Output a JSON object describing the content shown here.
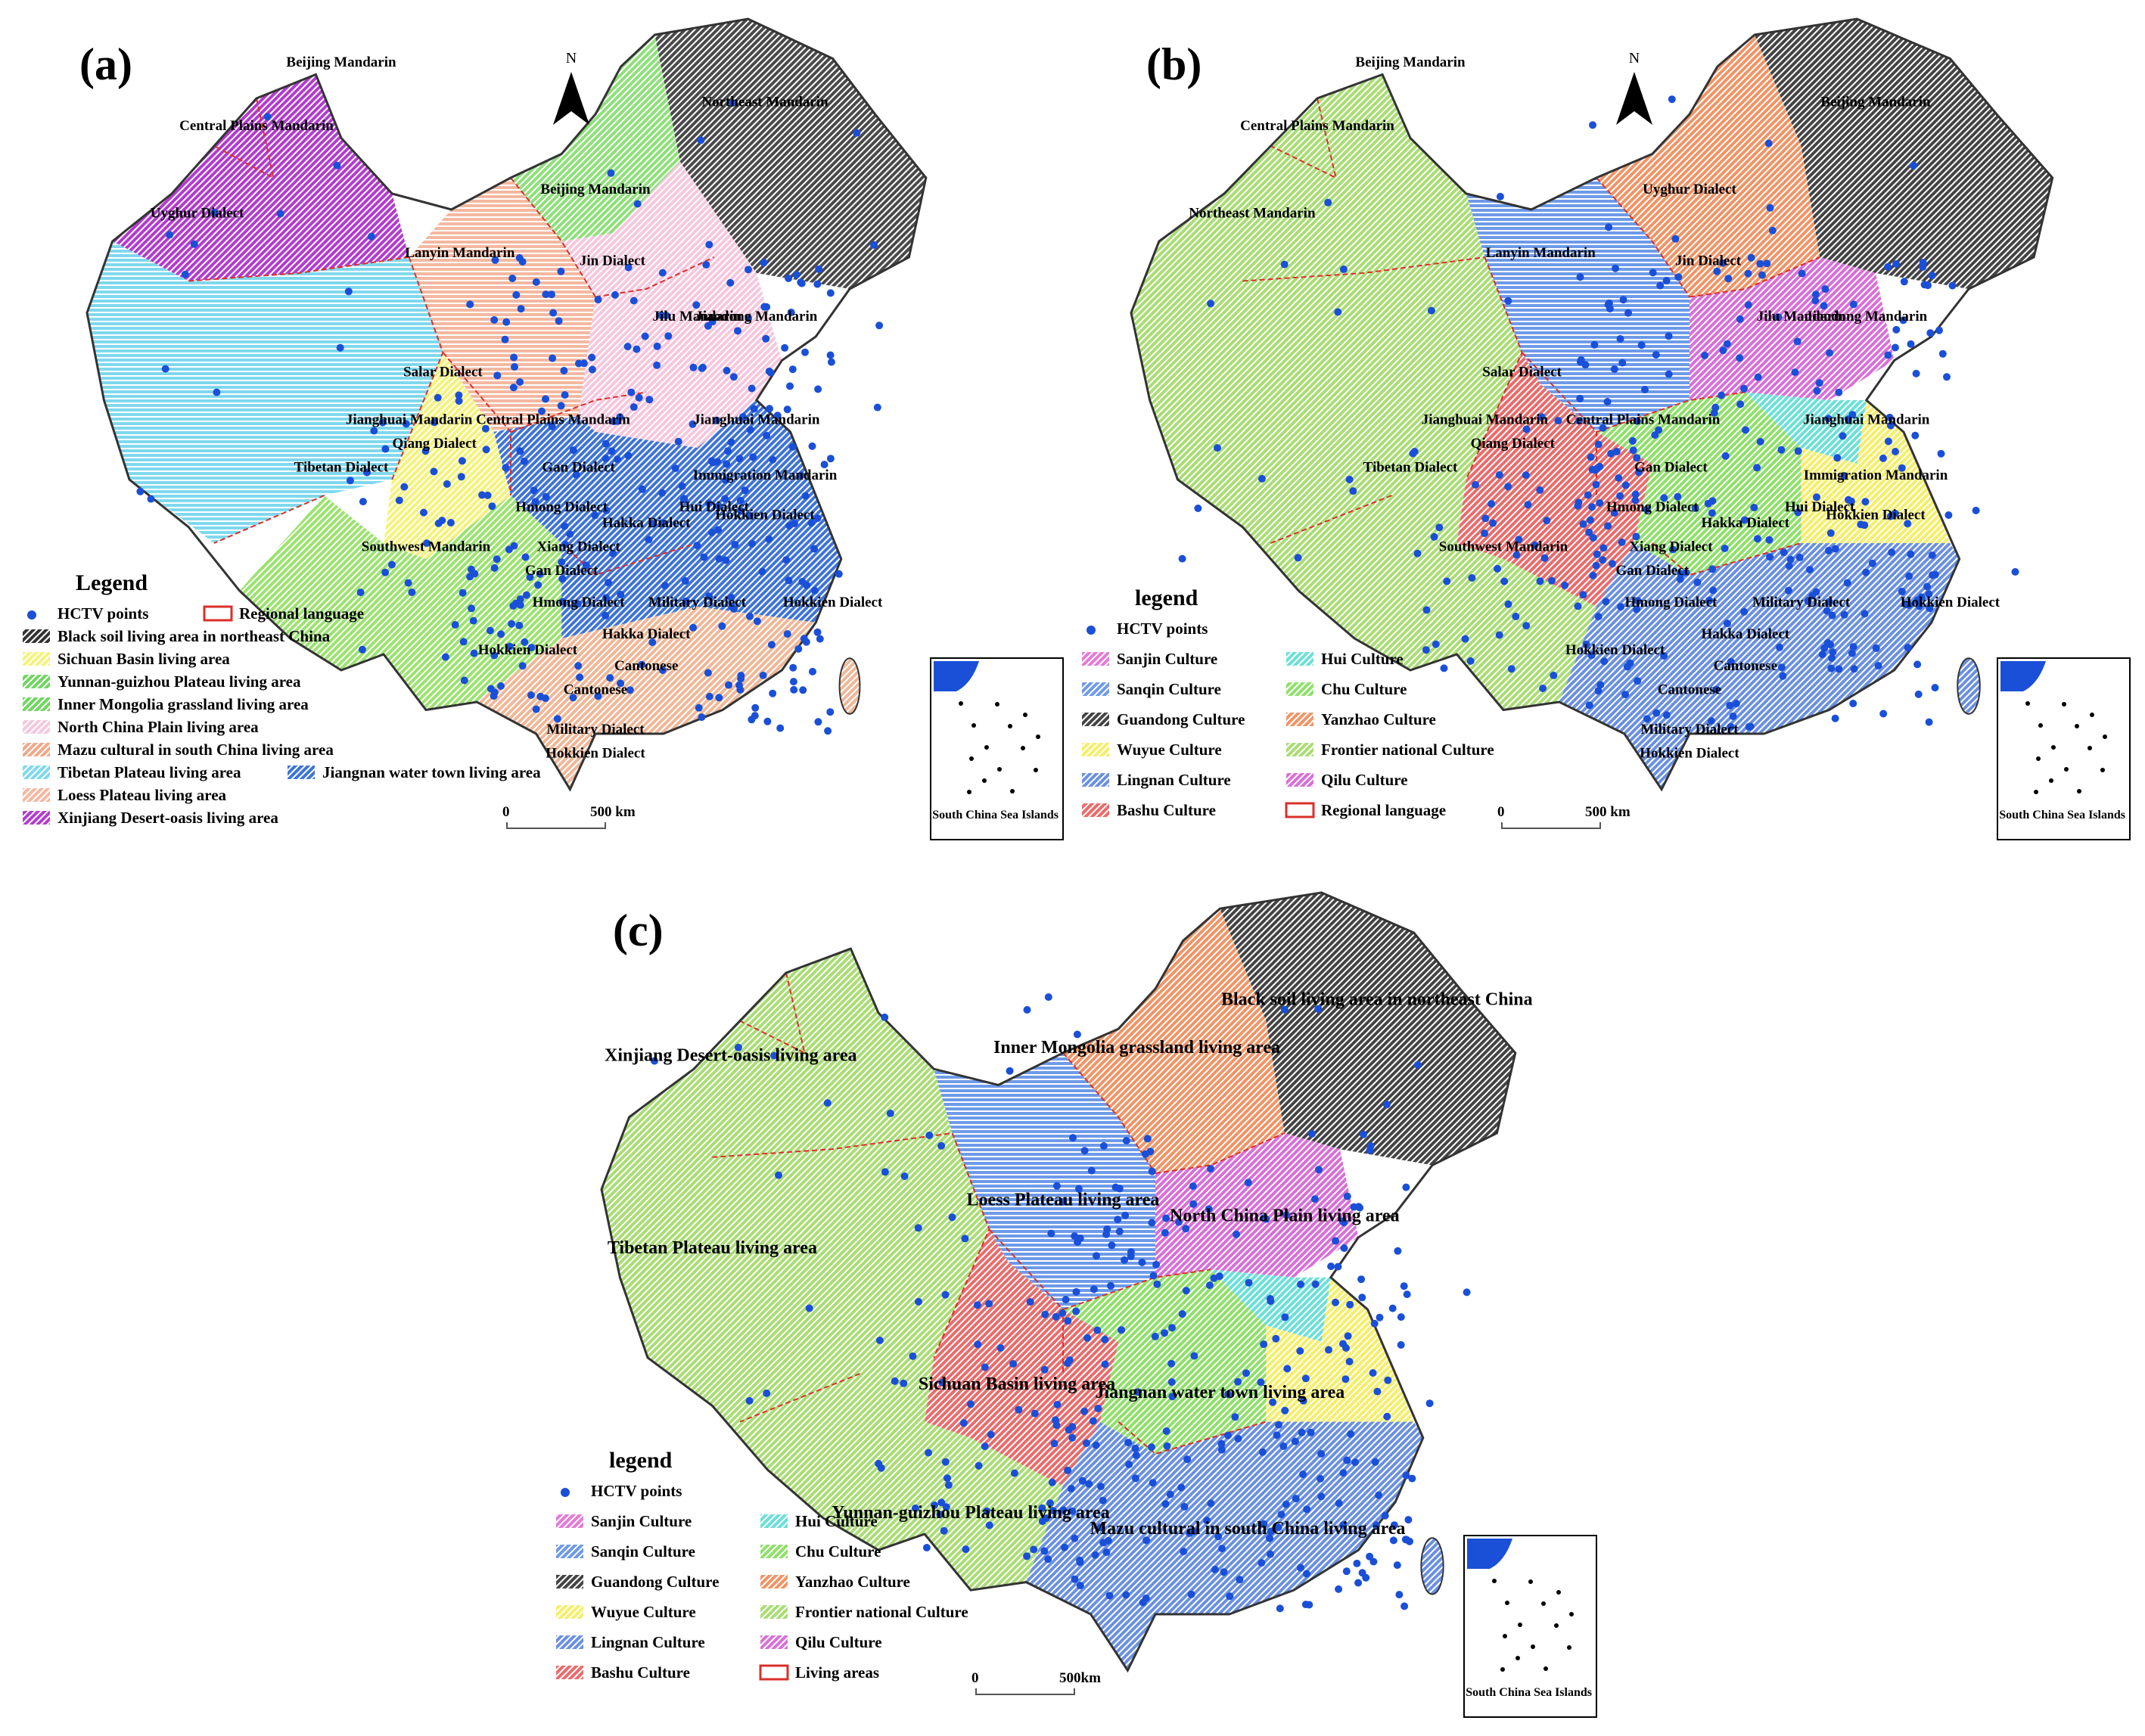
{
  "colors": {
    "hctv": "#1a4fd8",
    "regional_line": "#d9302b",
    "xinjiang": "#b23ccf",
    "tibet": "#7fd8ee",
    "loess": "#f4b8a0",
    "north_plain": "#f6c7de",
    "beijing_green": "#8ee07a",
    "northeast": "#4a4a4a",
    "sichuan": "#f5f27a",
    "yunnan": "#9be36f",
    "jiangnan": "#3f74d8",
    "mazu": "#f0b797",
    "frontier": "#a9dd74",
    "sanqin": "#6e9ae8",
    "yanzhao": "#f09466",
    "qilu": "#d86fd8",
    "bashu": "#ea6b6b",
    "chu": "#8fe06a",
    "hui": "#6ae0d8",
    "wuyue": "#f5ee6a",
    "lingnan": "#6a90e0",
    "sanjin": "#e47ad8",
    "guandong": "#444444"
  },
  "panel_a": {
    "label": "(a)",
    "north": "N",
    "legend_title": "Legend",
    "legend_items": [
      {
        "label": "HCTV points",
        "kind": "point"
      },
      {
        "label": "Regional language",
        "kind": "outline"
      },
      {
        "label": "Black soil living area in northeast China",
        "color": "#333333"
      },
      {
        "label": "Sichuan Basin living area",
        "color": "#f5f27a"
      },
      {
        "label": "Yunnan-guizhou Plateau living area",
        "color": "#6fd65f"
      },
      {
        "label": "Inner Mongolia grassland living area",
        "color": "#6fd65f"
      },
      {
        "label": "North China Plain living area",
        "color": "#f6c7de"
      },
      {
        "label": "Mazu cultural in south China living area",
        "color": "#f0a98a"
      },
      {
        "label": "Tibetan Plateau living area",
        "color": "#7fd8ee"
      },
      {
        "label": "Jiangnan water town living area",
        "color": "#3f74d8"
      },
      {
        "label": "Loess Plateau living area",
        "color": "#f4b8a0"
      },
      {
        "label": "Xinjiang Desert-oasis living area",
        "color": "#b23ccf"
      }
    ],
    "map_labels": [
      "Beijing Mandarin",
      "Central Plains Mandarin",
      "Uyghur Dialect",
      "Northeast Mandarin",
      "Beijing Mandarin",
      "Lanyin Mandarin",
      "Jin Dialect",
      "Jilu Mandarin",
      "Jiaodong Mandarin",
      "Salar Dialect",
      "Jianghuai Mandarin",
      "Central Plains Mandarin",
      "Jianghuai Mandarin",
      "Qiang Dialect",
      "Tibetan Dialect",
      "Gan Dialect",
      "Immigration Mandarin",
      "Hmong Dialect",
      "Hui Dialect",
      "Hakka Dialect",
      "Hokkien Dialect",
      "Xiang Dialect",
      "Gan Dialect",
      "Southwest Mandarin",
      "Hmong Dialect",
      "Military Dialect",
      "Hakka Dialect",
      "Hokkien Dialect",
      "Hokkien Dialect",
      "Cantonese",
      "Cantonese",
      "Military Dialect",
      "Hokkien Dialect"
    ],
    "scale": {
      "zero": "0",
      "end": "500 km"
    },
    "inset": "South China Sea Islands"
  },
  "panel_b": {
    "label": "(b)",
    "north": "N",
    "legend_title": "legend",
    "legend_items": [
      {
        "label": "HCTV points",
        "kind": "point"
      },
      {
        "label": "Sanjin Culture",
        "color": "#e47ad8"
      },
      {
        "label": "Hui  Culture",
        "color": "#6ae0d8"
      },
      {
        "label": "Sanqin Culture",
        "color": "#6e9ae8"
      },
      {
        "label": "Chu Culture",
        "color": "#8fe06a"
      },
      {
        "label": "Guandong Culture",
        "color": "#444444"
      },
      {
        "label": "Yanzhao Culture",
        "color": "#f09466"
      },
      {
        "label": "Wuyue Culture",
        "color": "#f5ee6a"
      },
      {
        "label": "Frontier national Culture",
        "color": "#a9dd74"
      },
      {
        "label": "Lingnan Culture",
        "color": "#6a90e0"
      },
      {
        "label": "Qilu Culture",
        "color": "#d86fd8"
      },
      {
        "label": "Bashu Culture",
        "color": "#ea6b6b"
      },
      {
        "label": "Regional language",
        "kind": "outline"
      }
    ],
    "map_labels": [
      "Beijing Mandarin",
      "Central Plains Mandarin",
      "Northeast Mandarin",
      "Beijing Mandarin",
      "Uyghur Dialect",
      "Lanyin Mandarin",
      "Jin Dialect",
      "Jilu Mandarin",
      "Jiaodong Mandarin",
      "Salar Dialect",
      "Jianghuai Mandarin",
      "Central Plains Mandarin",
      "Jianghuai Mandarin",
      "Qiang Dialect",
      "Tibetan Dialect",
      "Gan Dialect",
      "Immigration Mandarin",
      "Hmong Dialect",
      "Hui Dialect",
      "Hakka Dialect",
      "Hokkien Dialect",
      "Xiang Dialect",
      "Gan Dialect",
      "Southwest Mandarin",
      "Hmong Dialect",
      "Military Dialect",
      "Hakka Dialect",
      "Hokkien Dialect",
      "Hokkien Dialect",
      "Cantonese",
      "Cantonese",
      "Military Dialect",
      "Hokkien Dialect"
    ],
    "scale": {
      "zero": "0",
      "end": "500 km"
    },
    "inset": "South China Sea Islands"
  },
  "panel_c": {
    "label": "(c)",
    "legend_title": "legend",
    "legend_items": [
      {
        "label": "HCTV points",
        "kind": "point"
      },
      {
        "label": "Sanjin Culture",
        "color": "#e47ad8"
      },
      {
        "label": "Hui  Culture",
        "color": "#6ae0d8"
      },
      {
        "label": "Sanqin Culture",
        "color": "#6e9ae8"
      },
      {
        "label": "Chu Culture",
        "color": "#8fe06a"
      },
      {
        "label": "Guandong Culture",
        "color": "#444444"
      },
      {
        "label": "Yanzhao Culture",
        "color": "#f09466"
      },
      {
        "label": "Wuyue Culture",
        "color": "#f5ee6a"
      },
      {
        "label": "Frontier national Culture",
        "color": "#a9dd74"
      },
      {
        "label": "Lingnan Culture",
        "color": "#6a90e0"
      },
      {
        "label": "Qilu Culture",
        "color": "#d86fd8"
      },
      {
        "label": "Bashu Culture",
        "color": "#ea6b6b"
      },
      {
        "label": "Living areas",
        "kind": "outline"
      }
    ],
    "map_labels": [
      "Black soil living area in northeast China",
      "Inner Mongolia grassland living area",
      "Xinjiang Desert-oasis living area",
      "Loess Plateau living area",
      "North China Plain living area",
      "Tibetan Plateau living area",
      "Sichuan Basin living area",
      "Jiangnan water town living area",
      "Yunnan-guizhou Plateau living area",
      "Mazu cultural in south China living area"
    ],
    "scale": {
      "zero": "0",
      "end": "500km"
    },
    "inset": "South China Sea Islands"
  }
}
